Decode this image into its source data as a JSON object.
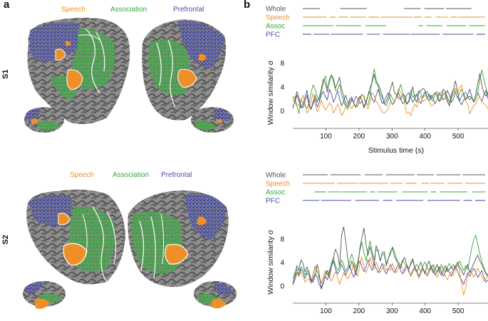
{
  "figure": {
    "panel_a": "a",
    "panel_b": "b",
    "subjects": [
      "S1",
      "S2"
    ],
    "roi_legend": [
      {
        "name": "Speech",
        "color": "#ef8f27"
      },
      {
        "name": "Association",
        "color": "#33a838"
      },
      {
        "name": "Prefrontal",
        "color": "#4a4fa5"
      }
    ],
    "brain_colors": {
      "cortex": "#8f8f8f",
      "sulci": "#575757",
      "outline": "#ffffff"
    }
  },
  "chart_data": [
    {
      "type": "line",
      "subject": "S1",
      "title": "",
      "xlabel": "Stimulus time (s)",
      "ylabel": "Window similarity σ",
      "xlim": [
        0,
        590
      ],
      "ylim": [
        -2,
        8
      ],
      "xticks": [
        100,
        200,
        300,
        400,
        500
      ],
      "yticks": [
        0,
        4,
        8
      ],
      "raster_labels": [
        "Whole",
        "Speech",
        "Assoc",
        "PFC"
      ],
      "series": [
        {
          "name": "Whole",
          "color": "#555555",
          "values": [
            0.4,
            1.6,
            3.2,
            2.2,
            0.8,
            0.5,
            1.6,
            2.6,
            0.8,
            0.3,
            1.5,
            2.6,
            1.4,
            2.3,
            3.6,
            5.3,
            4.5,
            3.1,
            5.2,
            6.0,
            5.3,
            3.8,
            4.6,
            5.6,
            3.6,
            2.4,
            1.2,
            0.6,
            1.9,
            2.3,
            1.2,
            0.6,
            1.8,
            2.4,
            1.8,
            0.4,
            1.5,
            2.6,
            3.9,
            4.7,
            6.1,
            4.6,
            4.4,
            3.6,
            2.6,
            1.1,
            1.6,
            2.4,
            3.6,
            4.8,
            3.0,
            2.6,
            2.1,
            1.9,
            2.7,
            2.6,
            1.1,
            1.4,
            2.4,
            4.0,
            2.0,
            1.4,
            3.0,
            3.3,
            3.7,
            3.5,
            2.1,
            2.8,
            2.0,
            2.6,
            3.0,
            2.4,
            1.6,
            2.3,
            3.6,
            3.2,
            1.8,
            0.8,
            2.2,
            3.6,
            5.0,
            3.2,
            1.6,
            1.0,
            1.8,
            1.9,
            2.2,
            2.4,
            2.1,
            1.5,
            2.8,
            4.6,
            6.2,
            4.2,
            3.0,
            2.4,
            3.0
          ]
        },
        {
          "name": "Speech",
          "color": "#ef8f27",
          "values": [
            1.5,
            2.4,
            1.1,
            0.8,
            1.8,
            2.6,
            1.2,
            -0.4,
            0.2,
            1.6,
            2.9,
            1.0,
            -0.2,
            0.6,
            1.7,
            0.8,
            0.1,
            0.6,
            1.3,
            0.9,
            -0.4,
            0.3,
            1.1,
            0.5,
            -0.8,
            -0.3,
            0.8,
            1.6,
            0.9,
            0.3,
            1.0,
            0.7,
            0.9,
            2.2,
            2.8,
            2.1,
            1.0,
            0.3,
            1.4,
            3.0,
            2.5,
            1.5,
            1.1,
            0.4,
            -0.2,
            -0.4,
            -0.1,
            0.4,
            1.4,
            1.2,
            1.3,
            2.5,
            3.7,
            3.1,
            2.4,
            1.3,
            -0.4,
            -0.2,
            -0.8,
            0.3,
            1.1,
            0.6,
            1.7,
            2.4,
            1.5,
            1.8,
            2.0,
            1.6,
            0.8,
            0.9,
            1.4,
            1.7,
            2.6,
            3.2,
            3.0,
            2.4,
            1.4,
            1.0,
            2.0,
            2.8,
            3.8,
            3.0,
            3.8,
            4.3,
            2.4,
            1.6,
            1.0,
            -0.5,
            0.2,
            0.9,
            1.1,
            1.9,
            2.3,
            1.4,
            1.2,
            0.9,
            0.3
          ]
        },
        {
          "name": "Assoc",
          "color": "#33a838",
          "values": [
            2.4,
            1.6,
            0.8,
            -0.5,
            2.0,
            1.2,
            0.8,
            0.4,
            1.2,
            3.0,
            4.3,
            3.6,
            2.3,
            1.8,
            3.0,
            4.6,
            5.8,
            3.8,
            4.7,
            6.0,
            4.8,
            3.4,
            3.6,
            4.4,
            2.6,
            1.6,
            0.7,
            0.2,
            1.6,
            2.0,
            1.3,
            0.6,
            0.8,
            2.0,
            2.6,
            2.5,
            1.2,
            1.0,
            2.6,
            5.0,
            7.0,
            5.2,
            4.0,
            2.8,
            2.2,
            1.2,
            0.8,
            1.8,
            2.8,
            2.0,
            1.6,
            2.4,
            3.2,
            4.4,
            3.2,
            1.8,
            1.2,
            1.6,
            3.4,
            2.2,
            2.6,
            2.5,
            3.4,
            2.8,
            2.2,
            2.6,
            3.2,
            2.4,
            1.8,
            1.6,
            2.8,
            3.2,
            1.5,
            1.8,
            2.8,
            3.0,
            2.3,
            1.4,
            2.8,
            3.6,
            3.2,
            2.1,
            2.9,
            3.6,
            2.8,
            3.1,
            2.4,
            1.8,
            2.2,
            1.4,
            2.0,
            3.2,
            5.4,
            6.8,
            5.2,
            3.8,
            2.6
          ]
        },
        {
          "name": "PFC",
          "color": "#4a4fa5",
          "values": [
            0.6,
            1.4,
            2.6,
            1.6,
            0.4,
            1.2,
            2.2,
            3.4,
            1.2,
            0.2,
            1.2,
            2.0,
            0.6,
            1.4,
            2.6,
            3.2,
            2.4,
            1.8,
            3.6,
            2.8,
            1.4,
            2.2,
            3.4,
            2.0,
            0.8,
            1.6,
            2.6,
            1.4,
            1.0,
            1.8,
            1.4,
            2.4,
            2.0,
            1.2,
            1.6,
            0.8,
            1.2,
            2.6,
            3.2,
            2.0,
            1.4,
            2.6,
            3.6,
            2.2,
            1.2,
            1.6,
            2.4,
            3.0,
            1.8,
            1.0,
            1.6,
            2.2,
            3.0,
            2.0,
            1.2,
            1.4,
            2.6,
            3.0,
            2.2,
            1.4,
            2.0,
            2.8,
            1.6,
            1.2,
            2.4,
            3.2,
            2.2,
            1.6,
            2.6,
            2.0,
            1.2,
            1.8,
            3.0,
            2.4,
            1.8,
            2.2,
            3.4,
            2.6,
            1.4,
            2.0,
            3.2,
            2.2,
            1.6,
            2.4,
            3.0,
            1.8,
            2.6,
            3.6,
            2.4,
            1.4,
            2.0,
            3.0,
            2.2,
            1.6,
            2.6,
            3.4,
            2.0
          ]
        }
      ]
    },
    {
      "type": "line",
      "subject": "S2",
      "title": "",
      "xlabel": "Stimulus time (s)",
      "ylabel": "Window similarity σ",
      "xlim": [
        0,
        590
      ],
      "ylim": [
        -2,
        10
      ],
      "xticks": [
        100,
        200,
        300,
        400,
        500
      ],
      "yticks": [
        0,
        4,
        8
      ],
      "raster_labels": [
        "Whole",
        "Speech",
        "Assoc",
        "PFC"
      ],
      "series": [
        {
          "name": "Whole",
          "color": "#555555",
          "values": [
            0.2,
            1.8,
            3.4,
            2.6,
            4.4,
            3.8,
            2.4,
            3.2,
            2.2,
            1.0,
            0.6,
            1.8,
            3.6,
            2.0,
            -0.6,
            0.4,
            1.8,
            2.6,
            1.4,
            3.2,
            4.8,
            6.2,
            5.4,
            3.4,
            8.6,
            10.0,
            7.6,
            4.6,
            3.0,
            4.2,
            3.2,
            1.8,
            3.4,
            6.4,
            8.2,
            9.8,
            7.0,
            5.2,
            6.6,
            5.2,
            3.4,
            6.8,
            6.0,
            4.2,
            5.6,
            5.8,
            3.4,
            4.6,
            5.8,
            6.4,
            5.0,
            4.2,
            3.6,
            3.0,
            4.2,
            4.8,
            3.6,
            2.8,
            3.8,
            4.6,
            3.0,
            2.4,
            3.2,
            4.0,
            2.8,
            2.0,
            3.4,
            4.2,
            3.0,
            2.2,
            2.8,
            3.6,
            2.6,
            1.8,
            2.6,
            3.4,
            2.4,
            2.8,
            3.2,
            2.6,
            3.2,
            4.0,
            3.2,
            2.6,
            1.8,
            2.8,
            3.6,
            2.2,
            3.0,
            3.8,
            4.6,
            5.2,
            4.2,
            3.6,
            2.8,
            2.0,
            1.6
          ]
        },
        {
          "name": "Speech",
          "color": "#ef8f27",
          "values": [
            0.4,
            1.6,
            2.4,
            1.8,
            2.2,
            1.6,
            0.6,
            1.0,
            1.2,
            0.4,
            2.0,
            3.4,
            2.2,
            1.6,
            0.4,
            1.2,
            2.6,
            2.0,
            1.4,
            0.8,
            1.6,
            2.4,
            1.4,
            0.2,
            1.2,
            2.2,
            1.6,
            1.2,
            1.8,
            2.6,
            3.8,
            2.2,
            1.6,
            3.8,
            4.8,
            3.2,
            2.2,
            3.0,
            4.8,
            3.6,
            2.8,
            4.0,
            3.2,
            2.2,
            3.0,
            3.6,
            2.6,
            3.0,
            2.6,
            3.8,
            2.8,
            2.2,
            3.0,
            3.6,
            2.8,
            2.2,
            3.6,
            2.8,
            1.6,
            2.2,
            2.8,
            2.2,
            1.2,
            2.0,
            3.0,
            2.4,
            1.6,
            2.2,
            3.0,
            3.4,
            2.2,
            1.4,
            2.2,
            3.2,
            2.4,
            1.6,
            1.0,
            1.8,
            2.4,
            1.8,
            2.8,
            3.6,
            2.8,
            0.2,
            -1.6,
            -0.4,
            1.6,
            2.6,
            2.2,
            1.4,
            2.2,
            3.0,
            2.2,
            1.6,
            0.8,
            1.2,
            1.6
          ]
        },
        {
          "name": "Assoc",
          "color": "#33a838",
          "values": [
            1.2,
            2.2,
            2.8,
            2.0,
            3.2,
            2.8,
            1.8,
            2.6,
            2.2,
            0.8,
            1.8,
            3.2,
            2.4,
            1.2,
            0.4,
            1.4,
            2.4,
            1.8,
            2.6,
            3.8,
            4.8,
            3.4,
            2.6,
            3.2,
            4.4,
            3.6,
            2.4,
            3.2,
            4.2,
            5.4,
            4.2,
            3.0,
            4.2,
            6.0,
            7.4,
            5.6,
            4.2,
            6.0,
            7.6,
            5.8,
            4.4,
            6.2,
            5.8,
            4.2,
            5.4,
            5.2,
            3.8,
            4.6,
            5.4,
            6.6,
            5.8,
            4.6,
            4.0,
            3.4,
            4.4,
            3.8,
            3.2,
            2.8,
            3.6,
            4.2,
            3.2,
            3.6,
            3.0,
            2.4,
            3.4,
            4.0,
            3.2,
            2.6,
            3.0,
            3.6,
            3.0,
            2.2,
            2.8,
            3.6,
            3.0,
            2.4,
            3.2,
            3.8,
            3.0,
            3.6,
            2.8,
            3.4,
            4.2,
            3.4,
            2.6,
            3.4,
            2.8,
            4.6,
            6.4,
            7.8,
            8.6,
            7.0,
            5.4,
            4.0,
            3.0,
            2.2,
            1.8
          ]
        },
        {
          "name": "PFC",
          "color": "#4a4fa5",
          "values": [
            0.2,
            1.0,
            2.2,
            1.6,
            2.8,
            2.2,
            1.2,
            2.2,
            1.8,
            0.4,
            1.2,
            2.0,
            1.4,
            0.2,
            -0.4,
            0.6,
            1.6,
            1.0,
            2.2,
            3.2,
            4.2,
            2.8,
            2.0,
            2.6,
            3.6,
            2.8,
            1.8,
            2.6,
            3.4,
            2.2,
            1.4,
            2.4,
            3.6,
            4.2,
            3.2,
            2.4,
            3.2,
            4.4,
            3.4,
            2.6,
            3.8,
            3.0,
            2.2,
            3.0,
            3.8,
            2.6,
            2.0,
            2.8,
            3.6,
            2.8,
            2.2,
            3.0,
            3.6,
            2.6,
            2.0,
            2.8,
            3.4,
            2.4,
            1.8,
            2.6,
            3.2,
            2.4,
            1.6,
            2.4,
            3.0,
            2.2,
            1.8,
            2.6,
            3.4,
            2.6,
            1.8,
            2.4,
            3.2,
            2.4,
            1.6,
            2.2,
            3.0,
            2.2,
            1.6,
            2.6,
            3.4,
            2.4,
            1.6,
            1.0,
            0.2,
            1.2,
            2.2,
            1.6,
            2.4,
            3.0,
            2.2,
            1.4,
            2.0,
            2.6,
            1.4,
            0.6,
            1.0
          ]
        }
      ]
    }
  ]
}
